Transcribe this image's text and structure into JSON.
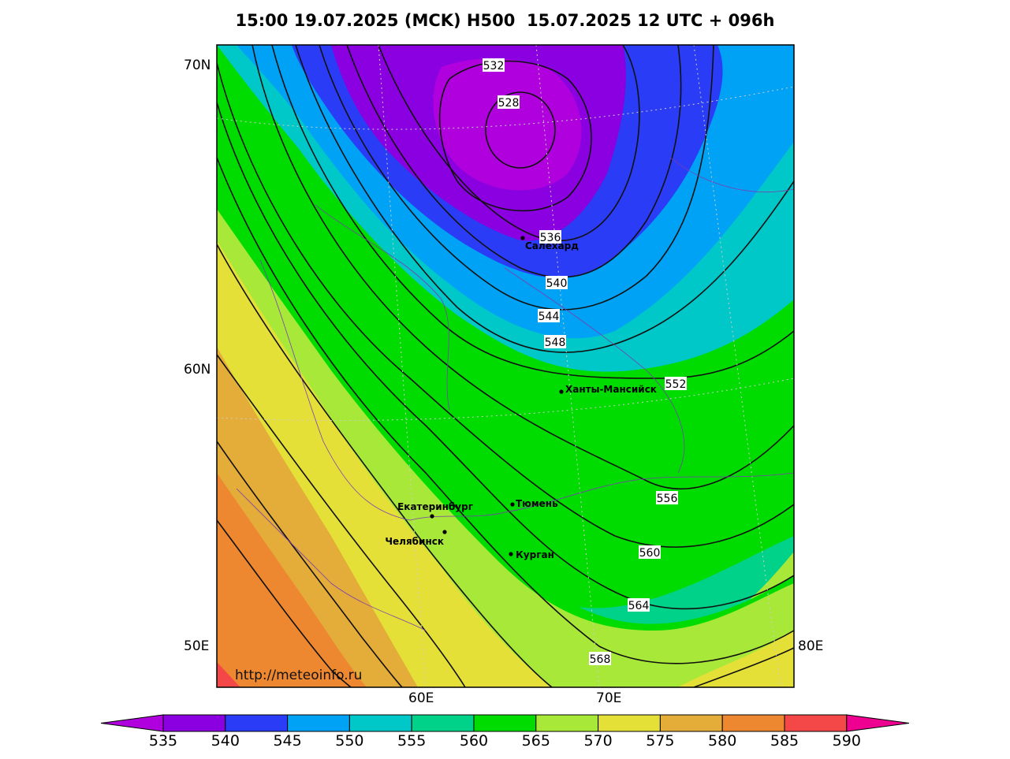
{
  "title": "15:00 19.07.2025 (MCK) H500  15.07.2025 12 UTC + 096h",
  "axis_labels": {
    "lat": [
      "70N",
      "60N",
      "50E"
    ],
    "lon": [
      "60E",
      "70E",
      "80E"
    ]
  },
  "contour_labels": [
    "532",
    "528",
    "536",
    "540",
    "544",
    "548",
    "552",
    "556",
    "560",
    "564",
    "568"
  ],
  "cities": [
    {
      "name": "Салехард"
    },
    {
      "name": "Ханты-Мансийск"
    },
    {
      "name": "Екатеринбург"
    },
    {
      "name": "Тюмень"
    },
    {
      "name": "Челябинск"
    },
    {
      "name": "Курган"
    }
  ],
  "watermark": "http://meteoinfo.ru",
  "colorbar": {
    "labels": [
      "535",
      "540",
      "545",
      "550",
      "555",
      "560",
      "565",
      "570",
      "575",
      "580",
      "585",
      "590"
    ],
    "colors": [
      "#b000dd",
      "#8a00e0",
      "#2a3cf5",
      "#00a2f5",
      "#00c8c8",
      "#00d28a",
      "#00dc00",
      "#a8e838",
      "#e4e038",
      "#e4ac38",
      "#ee8830",
      "#f44848",
      "#ee0090"
    ]
  }
}
